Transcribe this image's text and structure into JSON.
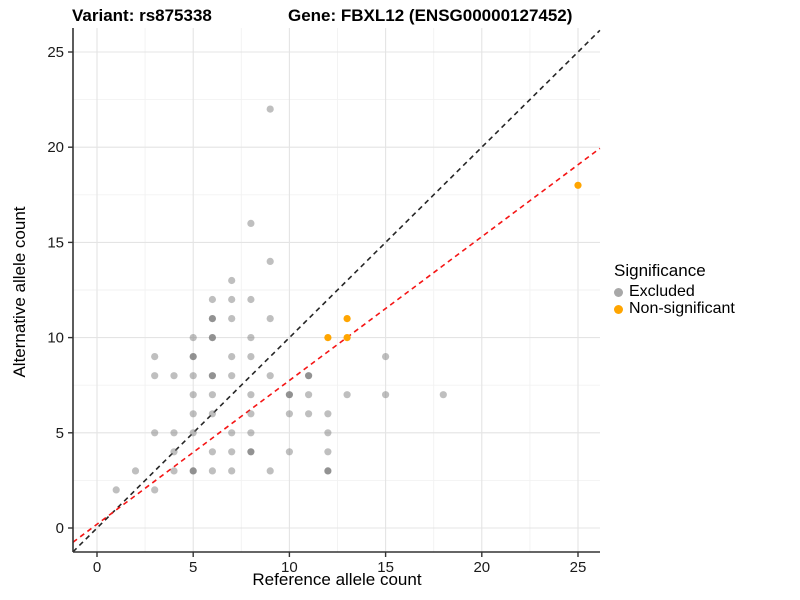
{
  "chart_data": {
    "type": "scatter",
    "title_left": "Variant: rs875338",
    "title_right": "Gene: FBXL12 (ENSG00000127452)",
    "xlabel": "Reference allele count",
    "ylabel": "Alternative allele count",
    "xlim": [
      -1.25,
      26.14
    ],
    "ylim": [
      -1.26,
      26.26
    ],
    "x_ticks": [
      0,
      5,
      10,
      15,
      20,
      25
    ],
    "y_ticks": [
      0,
      5,
      10,
      15,
      20,
      25
    ],
    "grid": "major+minor",
    "colors": {
      "excluded": "#7f7f7f",
      "non_significant": "#ffa500",
      "identity_line": "#262626",
      "ratio_line": "#f51515",
      "grid_major": "#e4e4e4",
      "grid_minor": "#f2f2f2",
      "axis": "#333333"
    },
    "legend": {
      "title": "Significance",
      "entries": [
        {
          "label": "Excluded",
          "color": "#a8a8a8"
        },
        {
          "label": "Non-significant",
          "color": "#ffa500"
        }
      ]
    },
    "lines": [
      {
        "name": "identity",
        "slope": 1,
        "intercept": 0,
        "style": "dashed",
        "color": "#262626"
      },
      {
        "name": "expected-ratio",
        "slope": 0.755,
        "intercept": 0.2,
        "style": "dashed",
        "color": "#f51515"
      }
    ],
    "series": [
      {
        "name": "Excluded",
        "color": "#7f7f7f",
        "opacity": 0.5,
        "points": [
          [
            1,
            2
          ],
          [
            3,
            2
          ],
          [
            2,
            3
          ],
          [
            4,
            3
          ],
          [
            6,
            3
          ],
          [
            7,
            3
          ],
          [
            9,
            3
          ],
          [
            4,
            4
          ],
          [
            6,
            4
          ],
          [
            7,
            4
          ],
          [
            10,
            4
          ],
          [
            12,
            4
          ],
          [
            3,
            5
          ],
          [
            4,
            5
          ],
          [
            5,
            5
          ],
          [
            7,
            5
          ],
          [
            8,
            5
          ],
          [
            12,
            5
          ],
          [
            5,
            6
          ],
          [
            6,
            6
          ],
          [
            8,
            6
          ],
          [
            10,
            6
          ],
          [
            11,
            6
          ],
          [
            12,
            6
          ],
          [
            5,
            7
          ],
          [
            6,
            7
          ],
          [
            8,
            7
          ],
          [
            11,
            7
          ],
          [
            13,
            7
          ],
          [
            15,
            7
          ],
          [
            18,
            7
          ],
          [
            3,
            8
          ],
          [
            4,
            8
          ],
          [
            5,
            8
          ],
          [
            7,
            8
          ],
          [
            9,
            8
          ],
          [
            3,
            9
          ],
          [
            7,
            9
          ],
          [
            8,
            9
          ],
          [
            15,
            9
          ],
          [
            5,
            10
          ],
          [
            8,
            10
          ],
          [
            7,
            11
          ],
          [
            9,
            11
          ],
          [
            6,
            12
          ],
          [
            7,
            12
          ],
          [
            8,
            12
          ],
          [
            7,
            13
          ],
          [
            9,
            14
          ],
          [
            8,
            16
          ],
          [
            9,
            22
          ]
        ]
      },
      {
        "name": "Excluded-overplotted",
        "color": "#7f7f7f",
        "opacity": 0.85,
        "points": [
          [
            5,
            3
          ],
          [
            12,
            3
          ],
          [
            8,
            4
          ],
          [
            10,
            7
          ],
          [
            6,
            8
          ],
          [
            11,
            8
          ],
          [
            5,
            9
          ],
          [
            6,
            10
          ],
          [
            6,
            11
          ]
        ]
      },
      {
        "name": "Non-significant",
        "color": "#ffa500",
        "opacity": 1,
        "points": [
          [
            12,
            10
          ],
          [
            13,
            10
          ],
          [
            13,
            11
          ],
          [
            25,
            18
          ]
        ]
      }
    ]
  }
}
